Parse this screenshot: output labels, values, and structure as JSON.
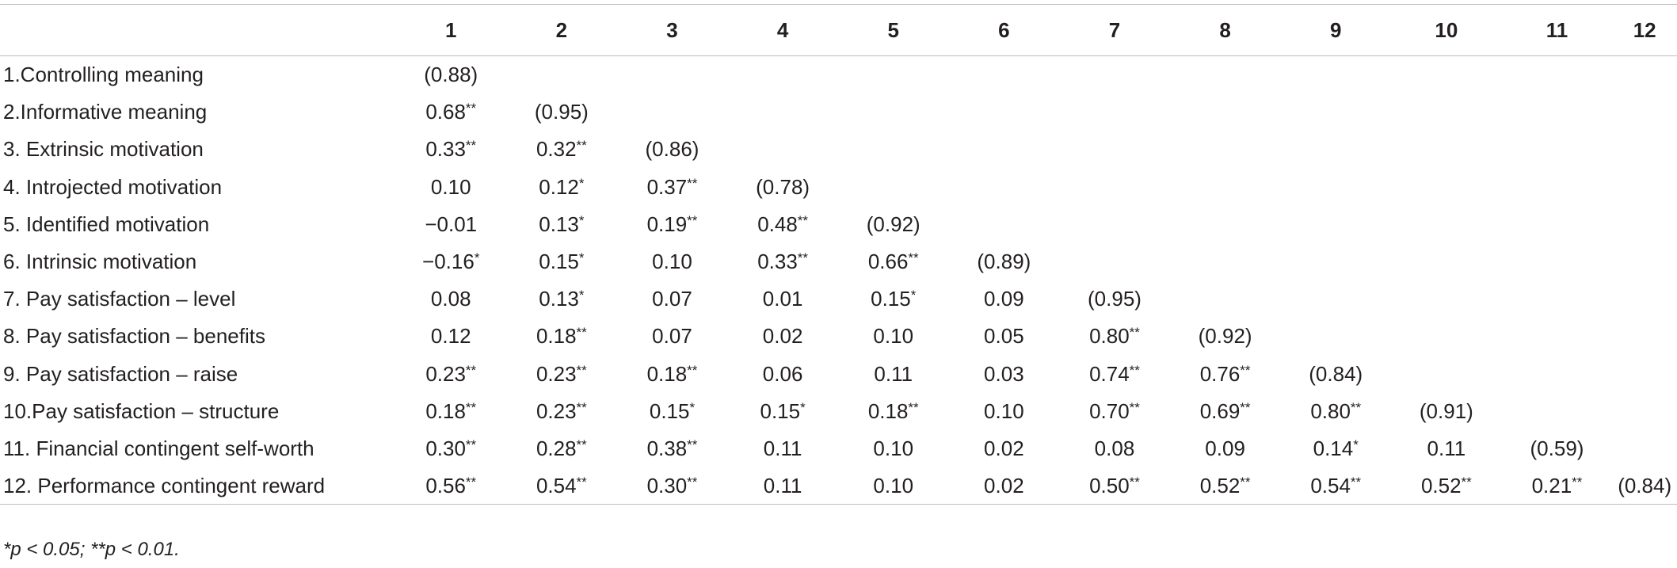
{
  "table": {
    "column_headers": [
      "",
      "1",
      "2",
      "3",
      "4",
      "5",
      "6",
      "7",
      "8",
      "9",
      "10",
      "11",
      "12"
    ],
    "rows": [
      {
        "label": "1.Controlling meaning",
        "cells": [
          "(0.88)"
        ]
      },
      {
        "label": "2.Informative meaning",
        "cells": [
          "0.68**",
          "(0.95)"
        ]
      },
      {
        "label": "3. Extrinsic motivation",
        "cells": [
          "0.33**",
          "0.32**",
          "(0.86)"
        ]
      },
      {
        "label": "4. Introjected motivation",
        "cells": [
          "0.10",
          "0.12*",
          "0.37**",
          "(0.78)"
        ]
      },
      {
        "label": "5. Identified motivation",
        "cells": [
          "−0.01",
          "0.13*",
          "0.19**",
          "0.48**",
          "(0.92)"
        ]
      },
      {
        "label": "6. Intrinsic motivation",
        "cells": [
          "−0.16*",
          "0.15*",
          "0.10",
          "0.33**",
          "0.66**",
          "(0.89)"
        ]
      },
      {
        "label": "7. Pay satisfaction – level",
        "cells": [
          "0.08",
          "0.13*",
          "0.07",
          "0.01",
          "0.15*",
          "0.09",
          "(0.95)"
        ]
      },
      {
        "label": "8. Pay satisfaction – benefits",
        "cells": [
          "0.12",
          "0.18**",
          "0.07",
          "0.02",
          "0.10",
          "0.05",
          "0.80**",
          "(0.92)"
        ]
      },
      {
        "label": "9. Pay satisfaction – raise",
        "cells": [
          "0.23**",
          "0.23**",
          "0.18**",
          "0.06",
          "0.11",
          "0.03",
          "0.74**",
          "0.76**",
          "(0.84)"
        ]
      },
      {
        "label": "10.Pay satisfaction – structure",
        "cells": [
          "0.18**",
          "0.23**",
          "0.15*",
          "0.15*",
          "0.18**",
          "0.10",
          "0.70**",
          "0.69**",
          "0.80**",
          "(0.91)"
        ]
      },
      {
        "label": "11. Financial contingent self-worth",
        "cells": [
          "0.30**",
          "0.28**",
          "0.38**",
          "0.11",
          "0.10",
          "0.02",
          "0.08",
          "0.09",
          "0.14*",
          "0.11",
          "(0.59)"
        ]
      },
      {
        "label": "12. Performance contingent reward",
        "cells": [
          "0.56**",
          "0.54**",
          "0.30**",
          "0.11",
          "0.10",
          "0.02",
          "0.50**",
          "0.52**",
          "0.54**",
          "0.52**",
          "0.21**",
          "(0.84)"
        ]
      }
    ],
    "footnote": "*p < 0.05; **p < 0.01."
  },
  "colors": {
    "text": "#231f20",
    "rule": "#bdbdbd"
  }
}
